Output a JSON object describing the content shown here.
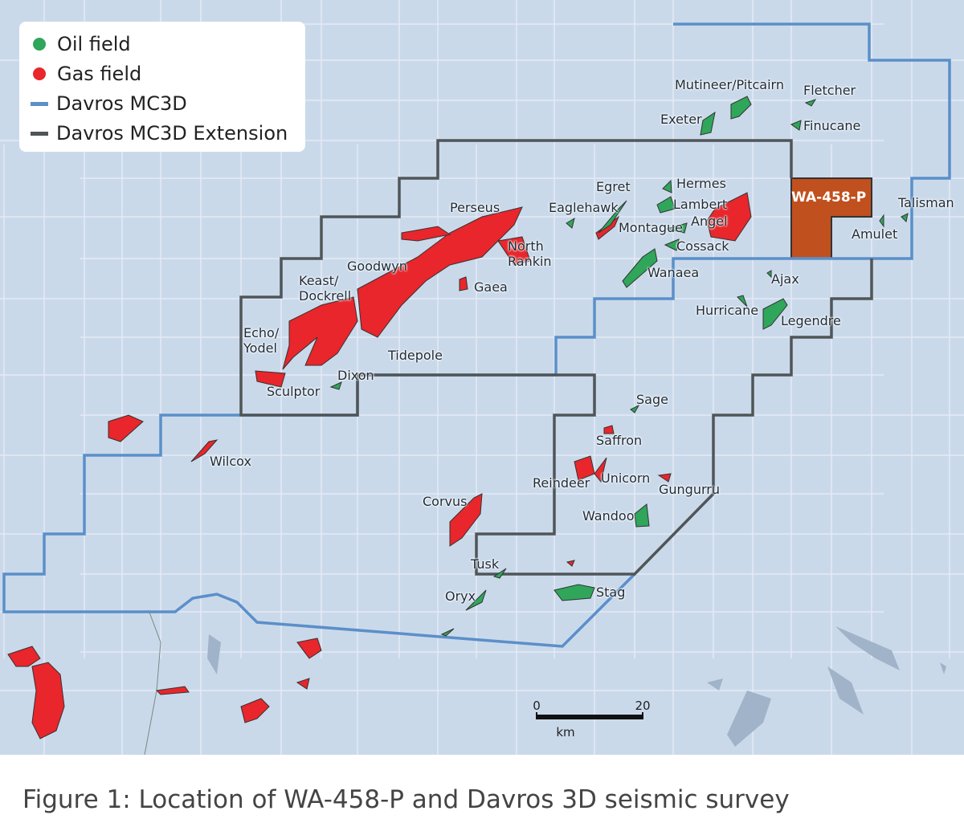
{
  "legend": {
    "items": [
      {
        "label": "Oil field",
        "color": "#2fa65a",
        "symbol": "dot"
      },
      {
        "label": "Gas field",
        "color": "#e8262b",
        "symbol": "dot"
      },
      {
        "label": "Davros MC3D",
        "color": "#5b8fc9",
        "symbol": "line"
      },
      {
        "label": "Davros MC3D Extension",
        "color": "#505558",
        "symbol": "line"
      }
    ]
  },
  "block": {
    "label": "WA-458-P"
  },
  "fields": [
    "Mutineer/Pitcairn",
    "Fletcher",
    "Exeter",
    "Finucane",
    "Egret",
    "Hermes",
    "Eaglehawk",
    "Lambert",
    "Angel",
    "Montague",
    "Cossack",
    "Talisman",
    "Amulet",
    "Perseus",
    "North Rankin",
    "Goodwyn",
    "Keast/ Dockrell",
    "Gaea",
    "Wanaea",
    "Ajax",
    "Hurricane",
    "Legendre",
    "Echo/ Yodel",
    "Tidepole",
    "Dixon",
    "Sculptor",
    "Sage",
    "Saffron",
    "Wilcox",
    "Reindeer",
    "Unicorn",
    "Gungurru",
    "Corvus",
    "Wandoo",
    "Tusk",
    "Stag",
    "Oryx"
  ],
  "scale": {
    "ticks": [
      0,
      20
    ],
    "unit": "km"
  },
  "caption": "Figure 1: Location of WA-458-P and Davros 3D seismic survey"
}
